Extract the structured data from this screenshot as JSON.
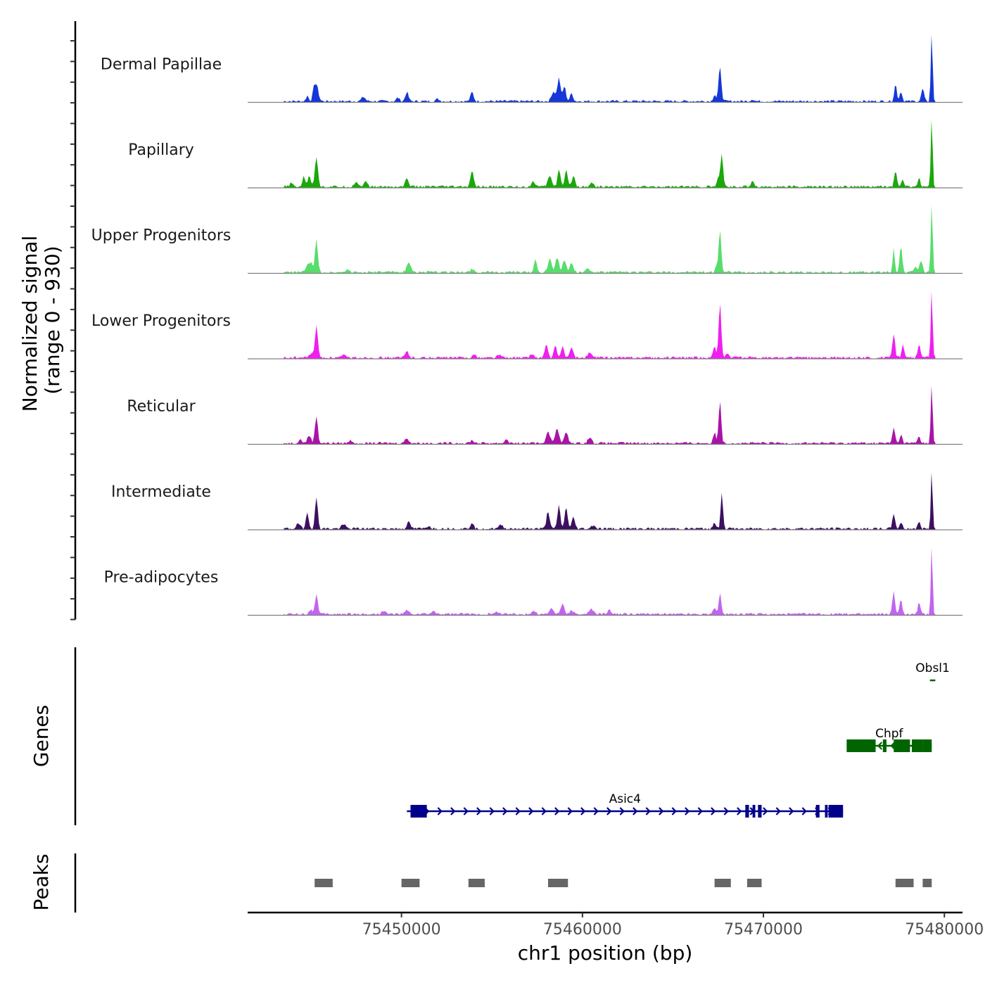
{
  "chart_data": {
    "type": "area",
    "title": "",
    "chromosome": "chr1",
    "xlabel": "chr1 position (bp)",
    "ylabel_line1": "Normalized signal",
    "ylabel_line2": "(range 0 - 930)",
    "xlim": [
      75441500,
      75481000
    ],
    "ylim": [
      0,
      930
    ],
    "x_ticks": [
      75450000,
      75460000,
      75470000,
      75480000
    ],
    "x_tick_labels": [
      "75450000",
      "75460000",
      "75470000",
      "75480000"
    ],
    "baseline_color": "#808080",
    "tracks": [
      {
        "name": "Dermal Papillae",
        "color": "#1638d8",
        "peaks": [
          [
            75445300,
            0.23,
            150
          ],
          [
            75445150,
            0.12,
            100
          ],
          [
            75444800,
            0.08,
            100
          ],
          [
            75447900,
            0.06,
            150
          ],
          [
            75450300,
            0.13,
            120
          ],
          [
            75449800,
            0.05,
            120
          ],
          [
            75452000,
            0.03,
            150
          ],
          [
            75453900,
            0.13,
            120
          ],
          [
            75458400,
            0.14,
            150
          ],
          [
            75458700,
            0.33,
            120
          ],
          [
            75459000,
            0.21,
            120
          ],
          [
            75459400,
            0.11,
            120
          ],
          [
            75467600,
            0.48,
            110
          ],
          [
            75467300,
            0.1,
            100
          ],
          [
            75469400,
            0.03,
            120
          ],
          [
            75477300,
            0.24,
            100
          ],
          [
            75477600,
            0.14,
            100
          ],
          [
            75478800,
            0.18,
            100
          ],
          [
            75479300,
            1.0,
            70
          ]
        ]
      },
      {
        "name": "Papillary",
        "color": "#1aa80a",
        "peaks": [
          [
            75445300,
            0.43,
            120
          ],
          [
            75444900,
            0.17,
            110
          ],
          [
            75444600,
            0.14,
            110
          ],
          [
            75443900,
            0.05,
            120
          ],
          [
            75447500,
            0.07,
            150
          ],
          [
            75448000,
            0.07,
            150
          ],
          [
            75450300,
            0.11,
            140
          ],
          [
            75453900,
            0.24,
            110
          ],
          [
            75457300,
            0.07,
            150
          ],
          [
            75458200,
            0.16,
            150
          ],
          [
            75458700,
            0.25,
            110
          ],
          [
            75459100,
            0.23,
            110
          ],
          [
            75459500,
            0.16,
            120
          ],
          [
            75460500,
            0.06,
            150
          ],
          [
            75467500,
            0.11,
            100
          ],
          [
            75467700,
            0.48,
            100
          ],
          [
            75469400,
            0.09,
            120
          ],
          [
            75477300,
            0.23,
            100
          ],
          [
            75477700,
            0.1,
            100
          ],
          [
            75478600,
            0.12,
            100
          ],
          [
            75479300,
            1.0,
            70
          ]
        ]
      },
      {
        "name": "Upper Progenitors",
        "color": "#58dd6c",
        "peaks": [
          [
            75445300,
            0.46,
            110
          ],
          [
            75444800,
            0.1,
            150
          ],
          [
            75445000,
            0.12,
            110
          ],
          [
            75447000,
            0.04,
            150
          ],
          [
            75450400,
            0.15,
            150
          ],
          [
            75453900,
            0.05,
            150
          ],
          [
            75457400,
            0.18,
            110
          ],
          [
            75458200,
            0.2,
            140
          ],
          [
            75458600,
            0.21,
            140
          ],
          [
            75459000,
            0.17,
            140
          ],
          [
            75459400,
            0.13,
            140
          ],
          [
            75460300,
            0.05,
            150
          ],
          [
            75467600,
            0.62,
            100
          ],
          [
            75467400,
            0.08,
            100
          ],
          [
            75477200,
            0.35,
            80
          ],
          [
            75477600,
            0.37,
            100
          ],
          [
            75478400,
            0.09,
            100
          ],
          [
            75478700,
            0.16,
            120
          ],
          [
            75479300,
            1.0,
            70
          ]
        ]
      },
      {
        "name": "Lower Progenitors",
        "color": "#ef1fef",
        "peaks": [
          [
            75445300,
            0.46,
            110
          ],
          [
            75445000,
            0.06,
            150
          ],
          [
            75446800,
            0.03,
            150
          ],
          [
            75450300,
            0.09,
            140
          ],
          [
            75454000,
            0.04,
            150
          ],
          [
            75455400,
            0.04,
            150
          ],
          [
            75457200,
            0.05,
            150
          ],
          [
            75458000,
            0.18,
            120
          ],
          [
            75458500,
            0.16,
            110
          ],
          [
            75458900,
            0.16,
            120
          ],
          [
            75459400,
            0.13,
            140
          ],
          [
            75460400,
            0.07,
            150
          ],
          [
            75467300,
            0.15,
            120
          ],
          [
            75467600,
            0.78,
            100
          ],
          [
            75468000,
            0.06,
            140
          ],
          [
            75477200,
            0.35,
            100
          ],
          [
            75477700,
            0.18,
            100
          ],
          [
            75478600,
            0.18,
            100
          ],
          [
            75479300,
            0.98,
            70
          ]
        ]
      },
      {
        "name": "Reticular",
        "color": "#a914a8",
        "peaks": [
          [
            75445300,
            0.39,
            110
          ],
          [
            75444900,
            0.11,
            140
          ],
          [
            75444400,
            0.05,
            150
          ],
          [
            75447200,
            0.04,
            150
          ],
          [
            75450300,
            0.07,
            150
          ],
          [
            75453900,
            0.04,
            150
          ],
          [
            75455800,
            0.06,
            120
          ],
          [
            75458100,
            0.17,
            150
          ],
          [
            75458600,
            0.22,
            140
          ],
          [
            75459100,
            0.15,
            140
          ],
          [
            75460400,
            0.08,
            150
          ],
          [
            75467300,
            0.15,
            100
          ],
          [
            75467600,
            0.61,
            100
          ],
          [
            75477200,
            0.22,
            100
          ],
          [
            75477600,
            0.12,
            100
          ],
          [
            75478600,
            0.1,
            100
          ],
          [
            75479300,
            0.88,
            70
          ]
        ]
      },
      {
        "name": "Intermediate",
        "color": "#3c1060",
        "peaks": [
          [
            75445300,
            0.43,
            110
          ],
          [
            75444800,
            0.23,
            110
          ],
          [
            75444300,
            0.07,
            150
          ],
          [
            75446800,
            0.07,
            150
          ],
          [
            75450400,
            0.09,
            140
          ],
          [
            75451500,
            0.04,
            150
          ],
          [
            75453900,
            0.09,
            120
          ],
          [
            75455500,
            0.05,
            150
          ],
          [
            75458100,
            0.25,
            120
          ],
          [
            75458700,
            0.33,
            110
          ],
          [
            75459100,
            0.31,
            110
          ],
          [
            75459500,
            0.16,
            120
          ],
          [
            75460600,
            0.05,
            150
          ],
          [
            75467300,
            0.09,
            100
          ],
          [
            75467700,
            0.52,
            90
          ],
          [
            75477200,
            0.22,
            100
          ],
          [
            75477600,
            0.09,
            100
          ],
          [
            75478600,
            0.09,
            100
          ],
          [
            75479300,
            0.85,
            70
          ]
        ]
      },
      {
        "name": "Pre-adipocytes",
        "color": "#c264f0",
        "peaks": [
          [
            75445300,
            0.28,
            110
          ],
          [
            75445000,
            0.06,
            150
          ],
          [
            75449000,
            0.05,
            150
          ],
          [
            75450300,
            0.05,
            150
          ],
          [
            75451800,
            0.04,
            150
          ],
          [
            75455300,
            0.04,
            150
          ],
          [
            75457300,
            0.05,
            150
          ],
          [
            75458300,
            0.09,
            140
          ],
          [
            75458900,
            0.14,
            140
          ],
          [
            75459400,
            0.06,
            140
          ],
          [
            75460500,
            0.07,
            150
          ],
          [
            75461500,
            0.06,
            150
          ],
          [
            75467300,
            0.1,
            100
          ],
          [
            75467600,
            0.3,
            100
          ],
          [
            75477200,
            0.32,
            100
          ],
          [
            75477600,
            0.22,
            100
          ],
          [
            75478600,
            0.17,
            100
          ],
          [
            75479300,
            1.0,
            70
          ]
        ]
      }
    ],
    "genes": [
      {
        "name": "Obsl1",
        "strand": "-",
        "color": "#006400",
        "start": 75479200,
        "end": 75479500,
        "row": 0,
        "exons": []
      },
      {
        "name": "Chpf",
        "strand": "-",
        "color": "#006400",
        "start": 75474600,
        "end": 75479300,
        "row": 1,
        "exons": [
          [
            75474600,
            75476200
          ],
          [
            75476600,
            75476800
          ],
          [
            75477200,
            75478100
          ],
          [
            75478200,
            75478800
          ],
          [
            75478800,
            75479300
          ]
        ]
      },
      {
        "name": "Asic4",
        "strand": "+",
        "color": "#00008b",
        "start": 75450300,
        "end": 75474400,
        "row": 2,
        "exons": [
          [
            75450500,
            75451400
          ],
          [
            75469000,
            75469200
          ],
          [
            75469400,
            75469550
          ],
          [
            75469700,
            75469900
          ],
          [
            75472900,
            75473100
          ],
          [
            75473400,
            75473550
          ],
          [
            75473700,
            75473800
          ],
          [
            75473850,
            75474000
          ],
          [
            75473600,
            75474400
          ]
        ]
      }
    ],
    "peaks_track": {
      "label": "Peaks",
      "color": "#666666",
      "regions": [
        [
          75445200,
          75446200
        ],
        [
          75450000,
          75451000
        ],
        [
          75453700,
          75454600
        ],
        [
          75458100,
          75459200
        ],
        [
          75467300,
          75468200
        ],
        [
          75469100,
          75469900
        ],
        [
          75477300,
          75478300
        ],
        [
          75478800,
          75479300
        ]
      ]
    },
    "panel_labels": {
      "genes": "Genes",
      "peaks": "Peaks"
    }
  }
}
